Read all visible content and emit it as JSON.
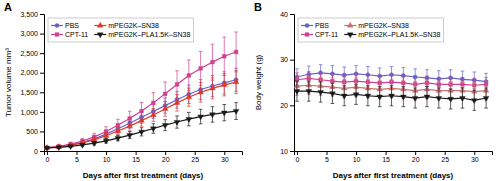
{
  "chart_data": [
    {
      "type": "line",
      "title": "A",
      "xlabel": "Days after first treatment (days)",
      "ylabel": "Tumor volume mm³",
      "x": [
        0,
        2,
        4,
        6,
        8,
        10,
        12,
        14,
        16,
        18,
        20,
        22,
        24,
        26,
        28,
        30,
        32
      ],
      "xlim": [
        -0.5,
        33
      ],
      "xticks": [
        0,
        5,
        10,
        15,
        20,
        25,
        30
      ],
      "ylim": [
        0,
        3500
      ],
      "yticks": [
        0,
        500,
        {
          "value": 1000,
          "label": "1,000"
        },
        {
          "value": 1500,
          "label": "1,500"
        },
        {
          "value": 2000,
          "label": "2,000"
        },
        {
          "value": 2500,
          "label": "2,500"
        },
        {
          "value": 3000,
          "label": "3,000"
        },
        {
          "value": 3500,
          "label": "3,500"
        }
      ],
      "grid": false,
      "legend": "upper left",
      "series": [
        {
          "name": "PBS",
          "color": "#6464c8",
          "marker": "circle",
          "values": [
            80,
            110,
            155,
            220,
            310,
            430,
            570,
            710,
            860,
            1010,
            1160,
            1310,
            1450,
            1570,
            1660,
            1740,
            1820
          ],
          "errors": [
            15,
            25,
            38,
            52,
            68,
            88,
            110,
            130,
            155,
            175,
            195,
            215,
            235,
            255,
            270,
            285,
            295
          ]
        },
        {
          "name": "CPT-11",
          "color": "#d04090",
          "marker": "square",
          "values": [
            80,
            120,
            175,
            255,
            360,
            500,
            660,
            830,
            1020,
            1230,
            1460,
            1700,
            1930,
            2110,
            2270,
            2420,
            2530
          ],
          "errors": [
            15,
            30,
            48,
            68,
            92,
            120,
            150,
            185,
            220,
            260,
            305,
            350,
            395,
            430,
            460,
            490,
            510
          ]
        },
        {
          "name": "mPEG2K–SN38",
          "color": "#e03828",
          "marker": "triangle-up",
          "values": [
            80,
            105,
            145,
            205,
            285,
            390,
            510,
            635,
            775,
            920,
            1075,
            1230,
            1375,
            1500,
            1600,
            1690,
            1760
          ],
          "errors": [
            15,
            22,
            34,
            47,
            62,
            80,
            100,
            120,
            142,
            165,
            188,
            210,
            232,
            252,
            268,
            282,
            292
          ]
        },
        {
          "name": "mPEG2K–PLA1.5K–SN38",
          "color": "#1a1a1a",
          "marker": "triangle-down",
          "values": [
            80,
            95,
            120,
            155,
            200,
            260,
            330,
            405,
            490,
            575,
            660,
            740,
            815,
            880,
            935,
            980,
            1020
          ],
          "errors": [
            15,
            18,
            25,
            34,
            44,
            57,
            72,
            88,
            105,
            122,
            140,
            157,
            172,
            186,
            198,
            208,
            216
          ]
        }
      ]
    },
    {
      "type": "line",
      "title": "B",
      "xlabel": "Days after first treatment (days)",
      "ylabel": "Body weight (g)",
      "x": [
        0,
        2,
        4,
        6,
        8,
        10,
        12,
        14,
        16,
        18,
        20,
        22,
        24,
        26,
        28,
        30,
        32
      ],
      "xlim": [
        -0.5,
        33
      ],
      "xticks": [
        0,
        5,
        10,
        15,
        20,
        25,
        30
      ],
      "ylim": [
        10,
        40
      ],
      "yticks": [
        10,
        20,
        30,
        40
      ],
      "grid": false,
      "legend": "upper left",
      "series": [
        {
          "name": "PBS",
          "color": "#6464c8",
          "marker": "circle",
          "values": [
            26.2,
            26.8,
            27.1,
            26.9,
            26.6,
            26.9,
            26.7,
            26.4,
            26.7,
            26.5,
            26.2,
            26.0,
            25.8,
            26.0,
            25.7,
            25.5,
            25.2
          ],
          "errors": [
            1.8,
            1.8,
            1.8,
            1.8,
            1.8,
            1.8,
            1.8,
            1.8,
            1.8,
            1.8,
            1.8,
            1.8,
            1.8,
            1.8,
            1.8,
            1.8,
            1.8
          ]
        },
        {
          "name": "CPT-11",
          "color": "#d04090",
          "marker": "square",
          "values": [
            25.6,
            25.9,
            25.6,
            25.3,
            25.1,
            25.3,
            25.1,
            24.9,
            25.1,
            24.9,
            24.6,
            24.9,
            24.6,
            24.6,
            24.6,
            24.4,
            24.6
          ],
          "errors": [
            1.5,
            1.5,
            1.5,
            1.5,
            1.5,
            1.5,
            1.5,
            1.5,
            1.5,
            1.5,
            1.5,
            1.5,
            1.5,
            1.5,
            1.5,
            1.5,
            1.5
          ]
        },
        {
          "name": "mPEG2K–SN38",
          "color": "#c87070",
          "marker": "triangle-up",
          "values": [
            24.2,
            24.4,
            24.2,
            24.0,
            23.7,
            24.0,
            23.7,
            23.5,
            23.7,
            23.5,
            23.2,
            23.5,
            23.2,
            23.2,
            23.2,
            23.0,
            23.2
          ],
          "errors": [
            2.0,
            2.0,
            2.0,
            2.0,
            2.0,
            2.0,
            2.0,
            2.0,
            2.0,
            2.0,
            2.0,
            2.0,
            2.0,
            2.0,
            2.0,
            2.0,
            2.0
          ]
        },
        {
          "name": "mPEG2K–PLA1.5K–SN38",
          "color": "#1a1a1a",
          "marker": "triangle-down",
          "values": [
            23.1,
            23.1,
            22.9,
            22.6,
            22.1,
            22.4,
            22.1,
            21.9,
            22.1,
            21.9,
            21.6,
            21.9,
            21.6,
            21.4,
            21.6,
            21.1,
            21.6
          ],
          "errors": [
            2.2,
            2.2,
            2.2,
            2.2,
            2.2,
            2.2,
            2.2,
            2.2,
            2.2,
            2.2,
            2.2,
            2.2,
            2.2,
            2.2,
            2.2,
            2.2,
            2.2
          ]
        }
      ]
    }
  ]
}
